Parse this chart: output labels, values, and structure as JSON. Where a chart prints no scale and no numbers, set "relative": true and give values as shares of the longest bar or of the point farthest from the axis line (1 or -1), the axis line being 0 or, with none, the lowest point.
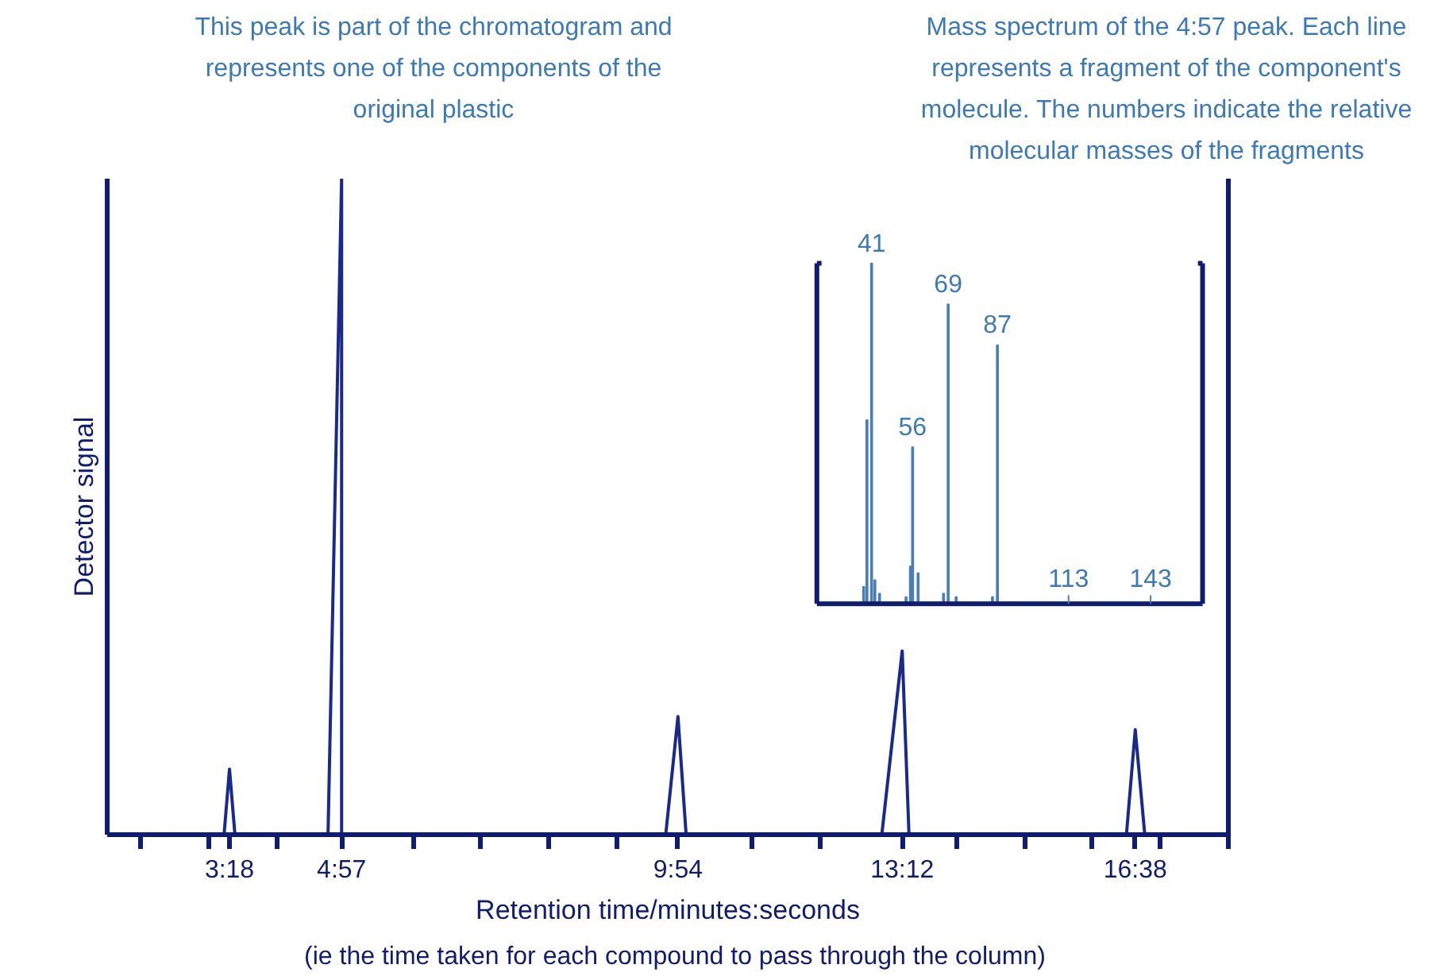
{
  "chart_data": [
    {
      "type": "line",
      "relative": true,
      "xlabel": "Retention time/minutes:seconds",
      "ylabel": "Detector signal",
      "xlim": [
        1.5,
        18
      ],
      "xticks": [
        {
          "value": 2,
          "label": null
        },
        {
          "value": 3,
          "label": null
        },
        {
          "value": 3.3,
          "label": "3:18"
        },
        {
          "value": 4,
          "label": null
        },
        {
          "value": 4.95,
          "label": "4:57"
        },
        {
          "value": 6,
          "label": null
        },
        {
          "value": 7,
          "label": null
        },
        {
          "value": 8,
          "label": null
        },
        {
          "value": 9,
          "label": null
        },
        {
          "value": 9.9,
          "label": "9:54"
        },
        {
          "value": 11,
          "label": null
        },
        {
          "value": 12,
          "label": null
        },
        {
          "value": 13.2,
          "label": "13:12"
        },
        {
          "value": 14,
          "label": null
        },
        {
          "value": 15,
          "label": null
        },
        {
          "value": 16,
          "label": null
        },
        {
          "value": 16.63,
          "label": "16:38"
        },
        {
          "value": 17,
          "label": null
        },
        {
          "value": 18,
          "label": null
        }
      ],
      "series": [
        {
          "color": "#1a2a8c",
          "x": [
            1.5,
            3.22,
            3.3,
            3.38,
            4.75,
            4.95,
            4.95,
            9.72,
            9.9,
            10.02,
            12.9,
            13.2,
            13.3,
            16.5,
            16.63,
            16.77,
            18
          ],
          "values": [
            0,
            0,
            0.1,
            0,
            0,
            1,
            0,
            0,
            0.18,
            0,
            0,
            0.28,
            0,
            0,
            0.16,
            0,
            0
          ]
        }
      ],
      "annotations": [
        "This peak is part of the chromatogram and represents one of the components of the original plastic",
        "(ie the time taken for each compound to pass through the column)"
      ]
    },
    {
      "type": "bar",
      "relative": true,
      "xlim": [
        21,
        162
      ],
      "xticks": [
        113,
        143
      ],
      "series": [
        {
          "color": "#4a7fb5",
          "x": [
            38.1,
            39.3,
            41,
            42.2,
            43.9,
            53.6,
            55.2,
            56,
            58,
            67.3,
            69,
            71.9,
            85.2,
            87
          ],
          "values": [
            0.05,
            0.54,
            1,
            0.07,
            0.03,
            0.02,
            0.11,
            0.46,
            0.09,
            0.03,
            0.88,
            0.02,
            0.02,
            0.76
          ]
        }
      ],
      "annotations": [
        "Mass spectrum of the 4:57 peak. Each line represents a fragment of the component's molecule. The numbers indicate the relative molecular masses of the fragments",
        {
          "text": "41",
          "x": 41,
          "y": 1
        },
        {
          "text": "56",
          "x": 56,
          "y": 0.46
        },
        {
          "text": "69",
          "x": 69,
          "y": 0.88
        },
        {
          "text": "87",
          "x": 87,
          "y": 0.76
        }
      ]
    }
  ]
}
